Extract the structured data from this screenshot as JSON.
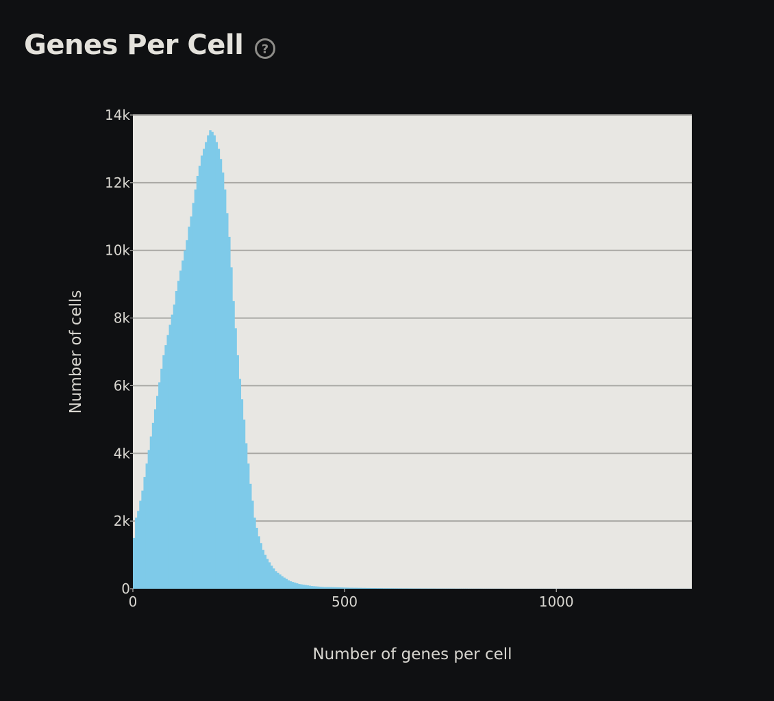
{
  "header": {
    "title": "Genes Per Cell",
    "help_icon": "help-circle-icon"
  },
  "colors": {
    "background": "#0f1012",
    "plot_background": "#e8e7e3",
    "bar": "#7ecae9",
    "grid": "#a9a8a4",
    "text": "#d8d6d0"
  },
  "chart_data": {
    "type": "bar",
    "xlabel": "Number of genes per cell",
    "ylabel": "Number of cells",
    "xlim": [
      0,
      1320
    ],
    "ylim": [
      0,
      14000
    ],
    "x_ticks": [
      {
        "value": 0,
        "label": "0"
      },
      {
        "value": 500,
        "label": "500"
      },
      {
        "value": 1000,
        "label": "1000"
      }
    ],
    "y_ticks": [
      {
        "value": 0,
        "label": "0"
      },
      {
        "value": 2000,
        "label": "2k"
      },
      {
        "value": 4000,
        "label": "4k"
      },
      {
        "value": 6000,
        "label": "6k"
      },
      {
        "value": 8000,
        "label": "8k"
      },
      {
        "value": 10000,
        "label": "10k"
      },
      {
        "value": 12000,
        "label": "12k"
      },
      {
        "value": 14000,
        "label": "14k"
      }
    ],
    "grid": true,
    "bin_width": 5,
    "bins_start": 0,
    "values": [
      1500,
      2100,
      2300,
      2600,
      2900,
      3300,
      3700,
      4100,
      4500,
      4900,
      5300,
      5700,
      6100,
      6500,
      6900,
      7200,
      7500,
      7800,
      8100,
      8400,
      8800,
      9100,
      9400,
      9700,
      10000,
      10300,
      10700,
      11000,
      11400,
      11800,
      12200,
      12500,
      12800,
      13000,
      13200,
      13400,
      13550,
      13500,
      13400,
      13200,
      13000,
      12700,
      12300,
      11800,
      11100,
      10400,
      9500,
      8500,
      7700,
      6900,
      6200,
      5600,
      5000,
      4300,
      3700,
      3100,
      2600,
      2100,
      1800,
      1550,
      1350,
      1150,
      1000,
      880,
      780,
      680,
      600,
      520,
      470,
      420,
      370,
      330,
      290,
      250,
      220,
      200,
      180,
      160,
      140,
      130,
      120,
      110,
      100,
      90,
      80,
      75,
      70,
      65,
      60,
      55,
      50,
      50,
      50,
      48,
      46,
      44,
      42,
      40,
      38,
      36,
      34,
      32,
      30,
      30,
      28,
      28,
      26,
      26,
      24,
      24,
      22,
      22,
      20,
      20,
      20,
      18,
      18,
      18,
      16,
      16,
      16,
      15,
      15,
      14,
      14,
      13,
      13,
      12,
      12,
      12,
      11,
      11,
      10,
      10,
      10,
      10,
      9,
      9,
      9,
      8,
      8,
      8,
      8,
      7,
      7,
      7,
      7,
      6,
      6,
      6,
      6,
      6,
      5,
      5,
      5,
      5,
      5,
      5,
      4,
      4,
      4,
      4,
      4,
      4,
      4,
      3,
      3,
      3,
      3,
      3,
      3,
      3,
      3,
      3,
      3,
      2,
      2,
      2,
      2,
      2,
      2,
      2,
      2,
      2,
      2,
      2,
      2,
      2,
      2,
      2,
      2,
      2,
      2,
      2,
      2,
      2,
      2,
      2,
      2,
      2,
      2,
      2,
      2,
      2,
      2,
      2,
      2,
      2,
      2,
      2,
      2,
      2,
      2,
      2,
      2,
      2,
      2,
      2,
      2,
      2,
      2,
      2,
      2,
      2,
      2,
      2,
      2,
      2,
      2,
      2,
      2,
      2,
      2,
      2,
      2,
      2,
      2,
      2,
      2,
      2,
      2,
      2,
      2,
      2,
      2,
      2,
      2,
      2,
      2,
      2,
      2,
      2,
      2,
      2,
      2,
      2,
      2,
      2,
      2,
      2,
      2,
      2,
      2,
      2,
      2,
      2,
      2,
      2,
      2,
      2,
      2,
      2,
      2,
      2,
      2,
      2
    ]
  }
}
